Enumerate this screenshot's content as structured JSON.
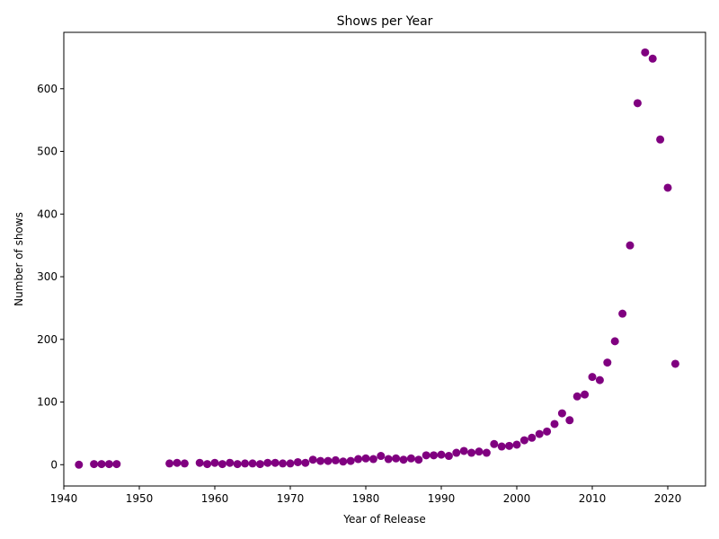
{
  "chart_data": {
    "type": "scatter",
    "title": "Shows per Year",
    "xlabel": "Year of Release",
    "ylabel": "Number of shows",
    "xlim": [
      1940,
      2025
    ],
    "ylim": [
      -34,
      690
    ],
    "xticks": [
      1940,
      1950,
      1960,
      1970,
      1980,
      1990,
      2000,
      2010,
      2020
    ],
    "yticks": [
      0,
      100,
      200,
      300,
      400,
      500,
      600
    ],
    "grid": false,
    "legend": "none",
    "color": "#800080",
    "x": [
      1942,
      1944,
      1945,
      1946,
      1947,
      1954,
      1955,
      1956,
      1958,
      1959,
      1960,
      1961,
      1962,
      1963,
      1964,
      1965,
      1966,
      1967,
      1968,
      1969,
      1970,
      1971,
      1972,
      1973,
      1974,
      1975,
      1976,
      1977,
      1978,
      1979,
      1980,
      1981,
      1982,
      1983,
      1984,
      1985,
      1986,
      1987,
      1988,
      1989,
      1990,
      1991,
      1992,
      1993,
      1994,
      1995,
      1996,
      1997,
      1998,
      1999,
      2000,
      2001,
      2002,
      2003,
      2004,
      2005,
      2006,
      2007,
      2008,
      2009,
      2010,
      2011,
      2012,
      2013,
      2014,
      2015,
      2016,
      2017,
      2018,
      2019,
      2020,
      2021
    ],
    "y": [
      0,
      1,
      1,
      1,
      1,
      2,
      3,
      2,
      3,
      1,
      3,
      1,
      3,
      1,
      2,
      2,
      1,
      3,
      3,
      2,
      2,
      4,
      3,
      8,
      6,
      6,
      7,
      5,
      6,
      9,
      10,
      9,
      14,
      9,
      10,
      8,
      10,
      8,
      15,
      15,
      16,
      14,
      19,
      22,
      19,
      21,
      19,
      33,
      29,
      30,
      32,
      39,
      43,
      49,
      53,
      65,
      82,
      71,
      109,
      112,
      140,
      135,
      163,
      197,
      241,
      350,
      577,
      658,
      648,
      519,
      442,
      161
    ]
  }
}
